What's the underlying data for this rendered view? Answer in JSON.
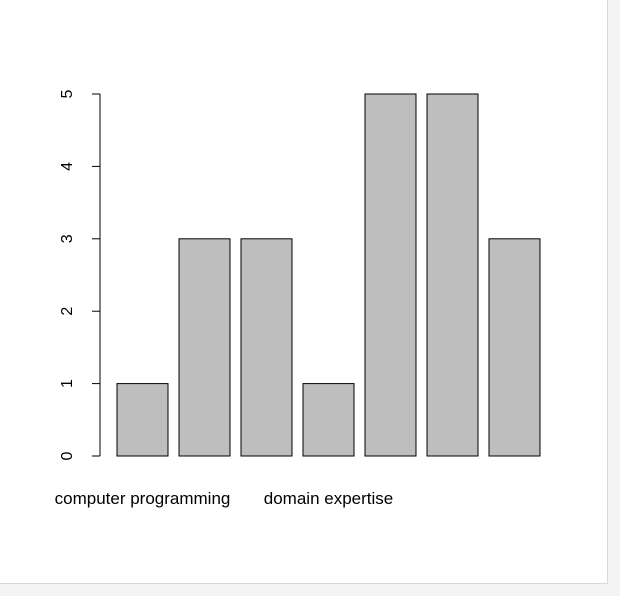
{
  "chart_data": {
    "type": "bar",
    "categories": [
      "computer programming",
      "",
      "",
      "domain expertise",
      "",
      "",
      ""
    ],
    "values": [
      1,
      3,
      3,
      1,
      5,
      5,
      3
    ],
    "y_ticks": [
      0,
      1,
      2,
      3,
      4,
      5
    ],
    "ylim": [
      0,
      5
    ],
    "title": "",
    "xlabel": "",
    "ylabel": "",
    "bar_color": "#bebebe",
    "bar_outline": "#000000",
    "grid": false
  }
}
